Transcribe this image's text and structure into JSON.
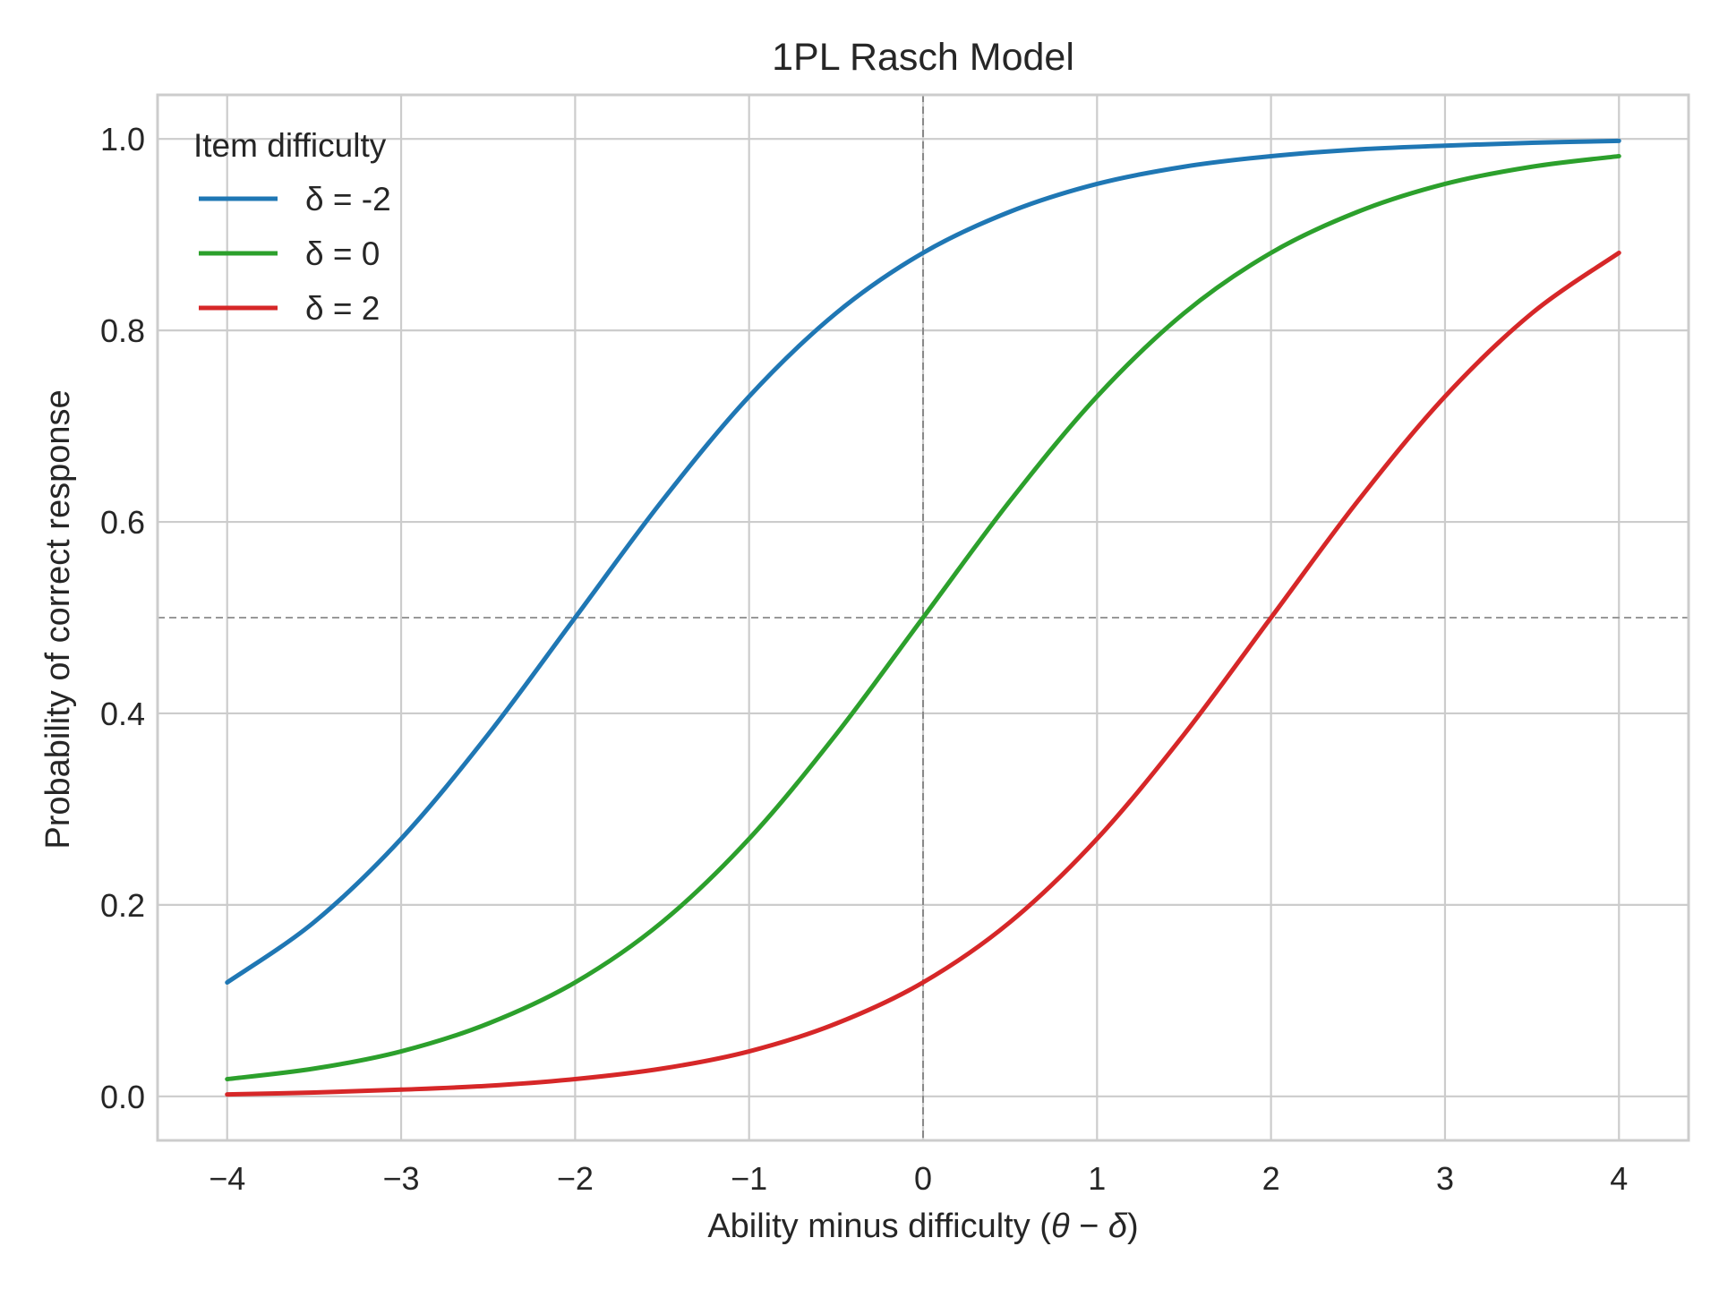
{
  "chart_data": {
    "type": "line",
    "title": "1PL Rasch Model",
    "xlabel": "Ability minus difficulty (θ − δ)",
    "xlabel_parts": {
      "prefix": "Ability minus difficulty (",
      "theta": "θ",
      "minus": " − ",
      "delta": "δ",
      "suffix": ")"
    },
    "ylabel": "Probability of correct response",
    "xlim": [
      -4.4,
      4.4
    ],
    "ylim": [
      -0.046,
      1.046
    ],
    "xticks": [
      -4,
      -3,
      -2,
      -1,
      0,
      1,
      2,
      3,
      4
    ],
    "xtick_labels": [
      "−4",
      "−3",
      "−2",
      "−1",
      "0",
      "1",
      "2",
      "3",
      "4"
    ],
    "yticks": [
      0.0,
      0.2,
      0.4,
      0.6,
      0.8,
      1.0
    ],
    "ytick_labels": [
      "0.0",
      "0.2",
      "0.4",
      "0.6",
      "0.8",
      "1.0"
    ],
    "grid": true,
    "reference_lines": [
      {
        "orientation": "horizontal",
        "value": 0.5,
        "style": "dashed",
        "color": "#999999"
      },
      {
        "orientation": "vertical",
        "value": 0,
        "style": "dashed",
        "color": "#888888"
      }
    ],
    "legend": {
      "title": "Item difficulty",
      "placement": "top-left"
    },
    "x": [
      -4.0,
      -3.5,
      -3.0,
      -2.5,
      -2.0,
      -1.5,
      -1.0,
      -0.5,
      0.0,
      0.5,
      1.0,
      1.5,
      2.0,
      2.5,
      3.0,
      3.5,
      4.0
    ],
    "series": [
      {
        "name": "δ = -2",
        "color": "#1f77b4",
        "values": [
          0.119,
          0.182,
          0.269,
          0.378,
          0.5,
          0.622,
          0.731,
          0.818,
          0.881,
          0.924,
          0.953,
          0.971,
          0.982,
          0.989,
          0.993,
          0.996,
          0.998
        ]
      },
      {
        "name": "δ = 0",
        "color": "#2ca02c",
        "values": [
          0.018,
          0.029,
          0.047,
          0.076,
          0.119,
          0.182,
          0.269,
          0.378,
          0.5,
          0.622,
          0.731,
          0.818,
          0.881,
          0.924,
          0.953,
          0.971,
          0.982
        ]
      },
      {
        "name": "δ = 2",
        "color": "#d62728",
        "values": [
          0.002,
          0.004,
          0.007,
          0.011,
          0.018,
          0.029,
          0.047,
          0.076,
          0.119,
          0.182,
          0.269,
          0.378,
          0.5,
          0.622,
          0.731,
          0.818,
          0.881
        ]
      }
    ]
  }
}
